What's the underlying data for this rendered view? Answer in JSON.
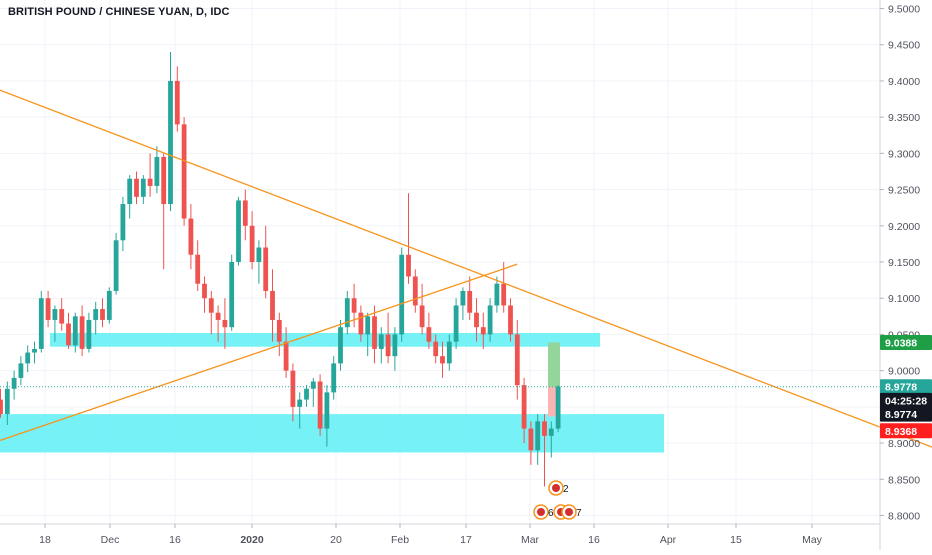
{
  "header": {
    "title": "BRITISH POUND / CHINESE YUAN, D, IDC"
  },
  "colors": {
    "up": "#26a69a",
    "down": "#ef5350",
    "trendline": "#f7931a",
    "zone": "#5ef0f6",
    "grid": "#f0f3fa",
    "axis_text": "#50535e",
    "tag_green": "#1e9e45",
    "tag_teal": "#26a69a",
    "tag_dark": "#131722",
    "tag_red": "#ff1f1f",
    "long_profit": "#93d59a",
    "long_stop": "#f9b4b4"
  },
  "chart_data": {
    "type": "candlestick",
    "title": "BRITISH POUND / CHINESE YUAN, D, IDC",
    "ylim": [
      8.79,
      9.51
    ],
    "y_ticks": [
      "9.5000",
      "9.4500",
      "9.4000",
      "9.3500",
      "9.3000",
      "9.2500",
      "9.2000",
      "9.1500",
      "9.1000",
      "9.0500",
      "9.0000",
      "8.9500",
      "8.9000",
      "8.8500",
      "8.8000"
    ],
    "x_ticks": [
      "18",
      "Dec",
      "16",
      "2020",
      "20",
      "Feb",
      "17",
      "Mar",
      "16",
      "Apr",
      "15",
      "May"
    ],
    "price_tags": [
      {
        "label": "9.0388",
        "value": 9.0388,
        "color": "green"
      },
      {
        "label": "8.9778",
        "value": 8.9778,
        "color": "teal"
      },
      {
        "label": "04:25:28",
        "value": 8.959,
        "color": "dark"
      },
      {
        "label": "8.9774",
        "value": 8.94,
        "color": "dark"
      },
      {
        "label": "8.9368",
        "value": 8.917,
        "color": "red"
      }
    ],
    "current_price": 8.9778,
    "support_zones": [
      {
        "from": 9.033,
        "to": 9.052
      },
      {
        "from": 8.887,
        "to": 8.94
      }
    ],
    "trendlines": [
      {
        "from": [
          -22,
          9.466
        ],
        "to": [
          153,
          8.837
        ]
      },
      {
        "from": [
          -34,
          8.795
        ],
        "to": [
          76,
          9.147
        ]
      }
    ],
    "long_position": {
      "entry": 8.9778,
      "target": 9.0388,
      "stop": 8.9368
    },
    "event_markers": [
      {
        "label": "2",
        "row": 1
      },
      {
        "label": "6",
        "row": 2
      },
      {
        "label": "8",
        "row": 2
      },
      {
        "label": "7",
        "row": 2
      }
    ],
    "candles": [
      [
        8.96,
        8.975,
        8.935,
        8.94
      ],
      [
        8.94,
        8.985,
        8.925,
        8.975
      ],
      [
        8.975,
        9.0,
        8.96,
        8.99
      ],
      [
        8.99,
        9.02,
        8.98,
        9.01
      ],
      [
        9.01,
        9.035,
        8.998,
        9.025
      ],
      [
        9.025,
        9.04,
        9.01,
        9.03
      ],
      [
        9.03,
        9.11,
        9.025,
        9.1
      ],
      [
        9.1,
        9.11,
        9.06,
        9.07
      ],
      [
        9.07,
        9.09,
        9.04,
        9.085
      ],
      [
        9.085,
        9.1,
        9.055,
        9.065
      ],
      [
        9.065,
        9.08,
        9.03,
        9.035
      ],
      [
        9.035,
        9.08,
        9.025,
        9.075
      ],
      [
        9.075,
        9.09,
        9.02,
        9.03
      ],
      [
        9.03,
        9.08,
        9.025,
        9.07
      ],
      [
        9.07,
        9.095,
        9.05,
        9.085
      ],
      [
        9.085,
        9.1,
        9.06,
        9.07
      ],
      [
        9.07,
        9.115,
        9.065,
        9.11
      ],
      [
        9.11,
        9.19,
        9.105,
        9.18
      ],
      [
        9.18,
        9.24,
        9.165,
        9.23
      ],
      [
        9.23,
        9.27,
        9.21,
        9.265
      ],
      [
        9.265,
        9.275,
        9.23,
        9.24
      ],
      [
        9.24,
        9.27,
        9.23,
        9.265
      ],
      [
        9.265,
        9.3,
        9.24,
        9.255
      ],
      [
        9.255,
        9.31,
        9.245,
        9.295
      ],
      [
        9.295,
        9.3,
        9.14,
        9.23
      ],
      [
        9.23,
        9.44,
        9.22,
        9.4
      ],
      [
        9.4,
        9.42,
        9.33,
        9.34
      ],
      [
        9.34,
        9.35,
        9.2,
        9.21
      ],
      [
        9.21,
        9.23,
        9.14,
        9.16
      ],
      [
        9.16,
        9.18,
        9.11,
        9.12
      ],
      [
        9.12,
        9.13,
        9.08,
        9.1
      ],
      [
        9.1,
        9.11,
        9.05,
        9.08
      ],
      [
        9.08,
        9.09,
        9.04,
        9.07
      ],
      [
        9.07,
        9.1,
        9.03,
        9.06
      ],
      [
        9.06,
        9.16,
        9.055,
        9.15
      ],
      [
        9.15,
        9.24,
        9.145,
        9.235
      ],
      [
        9.235,
        9.25,
        9.18,
        9.2
      ],
      [
        9.2,
        9.22,
        9.14,
        9.15
      ],
      [
        9.15,
        9.18,
        9.12,
        9.17
      ],
      [
        9.17,
        9.2,
        9.1,
        9.11
      ],
      [
        9.11,
        9.14,
        9.04,
        9.07
      ],
      [
        9.07,
        9.08,
        9.02,
        9.04
      ],
      [
        9.04,
        9.06,
        8.99,
        9.0
      ],
      [
        9.0,
        9.01,
        8.93,
        8.95
      ],
      [
        8.95,
        8.97,
        8.92,
        8.96
      ],
      [
        8.96,
        8.98,
        8.95,
        8.975
      ],
      [
        8.975,
        8.99,
        8.95,
        8.985
      ],
      [
        8.985,
        8.995,
        8.91,
        8.92
      ],
      [
        8.92,
        8.98,
        8.895,
        8.97
      ],
      [
        8.97,
        9.02,
        8.96,
        9.01
      ],
      [
        9.01,
        9.07,
        9.0,
        9.06
      ],
      [
        9.06,
        9.11,
        9.05,
        9.1
      ],
      [
        9.1,
        9.12,
        9.06,
        9.08
      ],
      [
        9.08,
        9.09,
        9.04,
        9.05
      ],
      [
        9.05,
        9.08,
        9.02,
        9.075
      ],
      [
        9.075,
        9.09,
        9.01,
        9.03
      ],
      [
        9.03,
        9.06,
        9.01,
        9.05
      ],
      [
        9.05,
        9.08,
        9.01,
        9.02
      ],
      [
        9.02,
        9.06,
        9.0,
        9.05
      ],
      [
        9.05,
        9.17,
        9.04,
        9.16
      ],
      [
        9.16,
        9.245,
        9.12,
        9.13
      ],
      [
        9.13,
        9.14,
        9.08,
        9.09
      ],
      [
        9.09,
        9.12,
        9.05,
        9.06
      ],
      [
        9.06,
        9.08,
        9.03,
        9.04
      ],
      [
        9.04,
        9.05,
        9.01,
        9.02
      ],
      [
        9.02,
        9.04,
        8.99,
        9.01
      ],
      [
        9.01,
        9.05,
        9.0,
        9.04
      ],
      [
        9.04,
        9.1,
        9.03,
        9.09
      ],
      [
        9.09,
        9.115,
        9.07,
        9.11
      ],
      [
        9.11,
        9.13,
        9.07,
        9.08
      ],
      [
        9.08,
        9.1,
        9.04,
        9.06
      ],
      [
        9.06,
        9.08,
        9.03,
        9.05
      ],
      [
        9.05,
        9.1,
        9.04,
        9.09
      ],
      [
        9.09,
        9.13,
        9.08,
        9.12
      ],
      [
        9.12,
        9.15,
        9.08,
        9.09
      ],
      [
        9.09,
        9.1,
        9.04,
        9.05
      ],
      [
        9.05,
        9.07,
        8.96,
        8.98
      ],
      [
        8.98,
        8.99,
        8.9,
        8.92
      ],
      [
        8.92,
        8.93,
        8.87,
        8.89
      ],
      [
        8.89,
        8.94,
        8.87,
        8.93
      ],
      [
        8.93,
        8.94,
        8.84,
        8.91
      ],
      [
        8.91,
        8.93,
        8.88,
        8.92
      ],
      [
        8.92,
        8.98,
        8.915,
        8.978
      ]
    ]
  }
}
